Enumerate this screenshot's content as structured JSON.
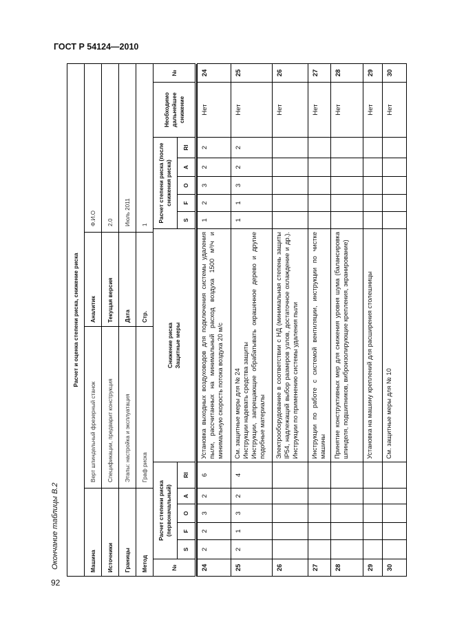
{
  "page": {
    "doc_id": "ГОСТ Р 54124—2010",
    "page_number": "92",
    "caption": "Окончание таблицы В.2"
  },
  "table": {
    "title": "Расчет и оценка степени риска, снижение риска",
    "info": [
      {
        "label": "Машина",
        "value": "Верт шпиндельный фрезерный станок",
        "label2": "Аналитик",
        "value2": "Ф.И.О"
      },
      {
        "label": "Источники",
        "value": "Спецификации, предварит конструкция",
        "label2": "Текущая версия",
        "value2": "2.0"
      },
      {
        "label": "Границы",
        "value": "Этапы: настройка и эксплуатация",
        "label2": "Дата",
        "value2": "Июль 2011"
      },
      {
        "label": "Метод",
        "value": "Граф риска",
        "label2": "Стр.",
        "value2": "1"
      }
    ],
    "headers": {
      "no": "№",
      "initial_group": "Расчет степени риска (первоначальный)",
      "letters": [
        "S",
        "F",
        "O",
        "A",
        "RI"
      ],
      "measures_title": "Снижение риска",
      "measures_subtitle": "Защитные меры",
      "after_group": "Расчет степени риска (после снижения риска)",
      "further": "Необходимо дальнейшее снижение",
      "no2": "№"
    },
    "rows": [
      {
        "no": "24",
        "initial": [
          "2",
          "2",
          "3",
          "2",
          "6"
        ],
        "measures": "Установка выходных воздуховодов для подключения системы удаления пыли, рассчитанных на минимальный расход воздуха 1500 м³/ч и минимальную скорость потока воздуха 20 м/с",
        "after": [
          "1",
          "2",
          "3",
          "2",
          "2"
        ],
        "further": "Нет"
      },
      {
        "no": "25",
        "initial": [
          "2",
          "1",
          "3",
          "2",
          "4"
        ],
        "measures": "См. защитные меры для № 24\nИнструкции надевать средства защиты\nИнструкции, запрещающие обрабатывать окрашенное дерево и другие подобные материалы",
        "after": [
          "1",
          "1",
          "3",
          "2",
          "2"
        ],
        "further": "Нет"
      },
      {
        "no": "26",
        "initial": [],
        "measures": "Электрооборудование в соответствии с НД (минимальная степень защиты IP54, надлежащий выбор размеров узлов, достаточное охлаждение и др.). Инструкции по применению системы удаления пыли",
        "after": [],
        "further": "Нет"
      },
      {
        "no": "27",
        "initial": [],
        "measures": "Инструкции по работе с системой вентиляции, инструкции по чистке машины",
        "after": [],
        "further": "Нет"
      },
      {
        "no": "28",
        "initial": [],
        "measures": "Принятие конструктивных мер для снижения уровня шума (балансировка шпинделя, подшипников, виброизолирующие крепления, экранирование)",
        "after": [],
        "further": "Нет"
      },
      {
        "no": "29",
        "initial": [],
        "measures": "Установка на машину креплений для расширения столешницы",
        "after": [],
        "further": "Нет"
      },
      {
        "no": "30",
        "initial": [],
        "measures": "См. защитные меры для № 10",
        "after": [],
        "further": "Нет"
      }
    ]
  }
}
